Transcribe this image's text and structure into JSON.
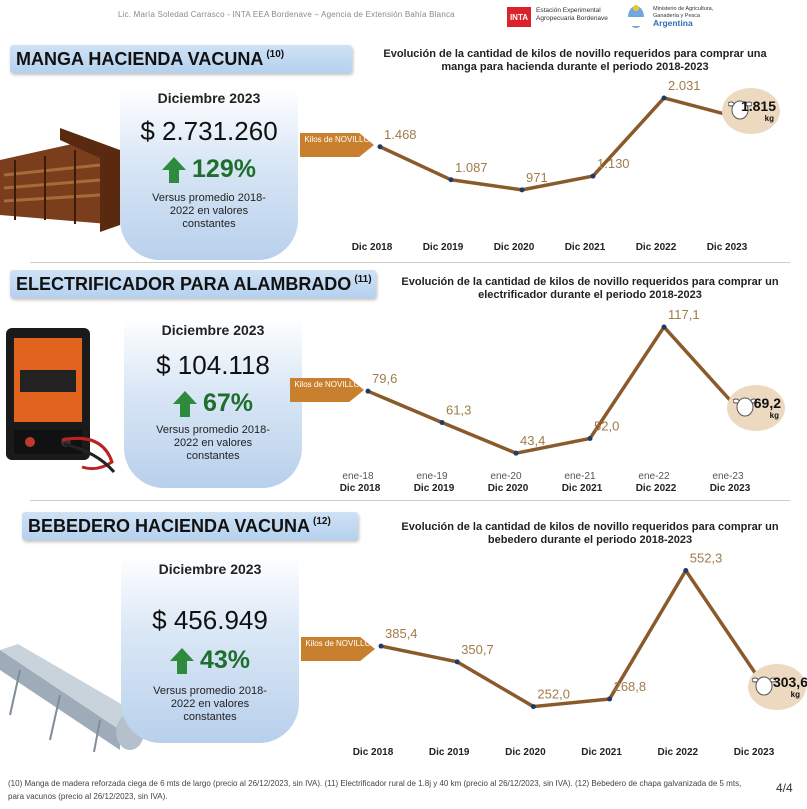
{
  "header": {
    "author": "Lic. María Soledad Carrasco - INTA EEA Bordenave – Agencia de Extensión Bahía Blanca",
    "inta_logo": "INTA",
    "inta_text": "Estación Experimental Agropecuaria Bordenave",
    "ministry_text": "Ministerio de Agricultura, Ganadería y Pesca",
    "country": "Argentina"
  },
  "colors": {
    "line": "#8b5a2b",
    "tag": "#c8802e",
    "bubble": "#ecd9c0",
    "title_bg": "#c3dbf2",
    "pct_green": "#1e6e2d"
  },
  "sections": [
    {
      "title": "MANGA HACIENDA VACUNA",
      "ref": "(10)",
      "chart_title": "Evolución de la cantidad de kilos de novillo requeridos  para comprar una manga para hacienda durante el periodo  2018-2023",
      "month": "Diciembre 2023",
      "price": "$ 2.731.260",
      "pct": "129%",
      "note": "Versus promedio 2018-2022 en valores constantes",
      "tag": "Kilos de NOVILLO",
      "last_value": "1.815",
      "unit": "kg"
    },
    {
      "title": "ELECTRIFICADOR PARA ALAMBRADO",
      "ref": "(11)",
      "chart_title": "Evolución de la cantidad de kilos de novillo requeridos  para comprar un electrificador durante el periodo  2018-2023",
      "month": "Diciembre 2023",
      "price": "$ 104.118",
      "pct": "67%",
      "note": "Versus promedio 2018-2022 en valores constantes",
      "tag": "Kilos de NOVILLO",
      "last_value": "69,2",
      "unit": "kg"
    },
    {
      "title": "BEBEDERO HACIENDA VACUNA",
      "ref": "(12)",
      "chart_title": "Evolución de la cantidad de kilos de novillo requeridos  para comprar un bebedero durante el periodo  2018-2023",
      "month": "Diciembre 2023",
      "price": "$ 456.949",
      "pct": "43%",
      "note": "Versus promedio 2018-2022 en valores constantes",
      "tag": "Kilos de NOVILLO",
      "last_value": "303,6",
      "unit": "kg"
    }
  ],
  "chart_data": [
    {
      "type": "line",
      "title": "Evolución de la cantidad de kilos de novillo requeridos  para comprar una manga para hacienda durante el periodo  2018-2023",
      "categories": [
        "Dic 2018",
        "Dic 2019",
        "Dic 2020",
        "Dic 2021",
        "Dic 2022",
        "Dic 2023"
      ],
      "values": [
        1468,
        1087,
        971,
        1130,
        2031,
        1815
      ],
      "labels": [
        "1.468",
        "1.087",
        "971",
        "1.130",
        "2.031",
        "1.815"
      ],
      "ylim": [
        900,
        2100
      ],
      "grid": false
    },
    {
      "type": "line",
      "title": "Evolución de la cantidad de kilos de novillo requeridos  para comprar un electrificador durante el periodo  2018-2023",
      "categories": [
        "Dic 2018",
        "Dic 2019",
        "Dic 2020",
        "Dic 2021",
        "Dic 2022",
        "Dic 2023"
      ],
      "secondary_categories": [
        "ene-18",
        "ene-19",
        "ene-20",
        "ene-21",
        "ene-22",
        "ene-23"
      ],
      "values": [
        79.6,
        61.3,
        43.4,
        52.0,
        117.1,
        69.2
      ],
      "labels": [
        "79,6",
        "61,3",
        "43,4",
        "52,0",
        "117,1",
        "69,2"
      ],
      "ylim": [
        40,
        120
      ],
      "grid": false
    },
    {
      "type": "line",
      "title": "Evolución de la cantidad de kilos de novillo requeridos  para comprar un bebedero durante el periodo  2018-2023",
      "categories": [
        "Dic 2018",
        "Dic 2019",
        "Dic 2020",
        "Dic 2021",
        "Dic 2022",
        "Dic 2023"
      ],
      "values": [
        385.4,
        350.7,
        252.0,
        268.8,
        552.3,
        303.6
      ],
      "labels": [
        "385,4",
        "350,7",
        "252,0",
        "268,8",
        "552,3",
        "303,6"
      ],
      "ylim": [
        240,
        560
      ],
      "grid": false
    }
  ],
  "footer": "(10) Manga de madera reforzada ciega de 6 mts de largo (precio al 26/12/2023, sin IVA). (11) Electrificador rural de 1.8j y 40 km (precio al 26/12/2023, sin IVA). (12) Bebedero de chapa galvanizada de 5 mts, para vacunos (precio al 26/12/2023, sin IVA).",
  "page": "4/4"
}
